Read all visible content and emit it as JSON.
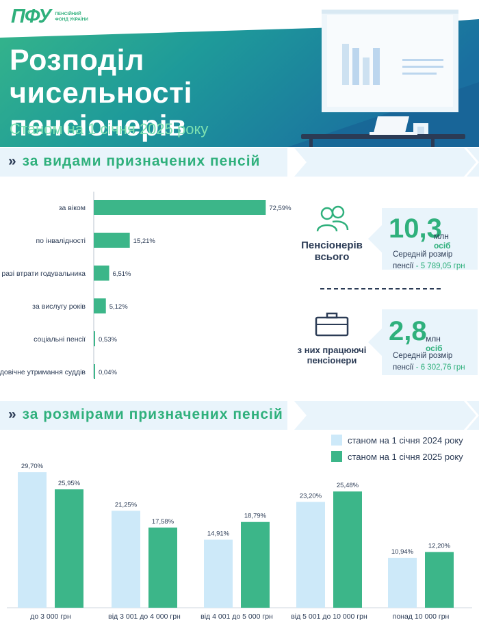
{
  "colors": {
    "accent_green": "#2fb07c",
    "dark_blue": "#2b3b55",
    "light_blue_bar": "#cde9f9",
    "band_bg": "#e9f4fb",
    "hero_teal": "#1b8f9e"
  },
  "header": {
    "logo_mark": "ПФУ",
    "logo_text": "ПЕНСІЙНИЙ ФОНД УКРАЇНИ",
    "title": "Розподіл чисельності пенсіонерів",
    "subtitle": "Станом на 1 січня 2025 року",
    "illustration_icon": "presentation-board-desk-icon"
  },
  "sections": {
    "by_type": {
      "chevron": "»",
      "title": "за видами призначених пенсій"
    },
    "by_size": {
      "chevron": "»",
      "title": "за розмірами призначених пенсій"
    }
  },
  "summary": {
    "total": {
      "icon": "people-icon",
      "label": "Пенсіонерів всього",
      "number": "10,3",
      "unit": "млн",
      "unit_word": "осіб",
      "avg_label": "Середній розмір пенсії",
      "avg_value": "- 5 789,05 грн"
    },
    "working": {
      "icon": "briefcase-icon",
      "label": "з них працюючі пенсіонери",
      "number": "2,8",
      "unit": "млн",
      "unit_word": "осіб",
      "avg_label": "Середній розмір пенсії",
      "avg_value": "- 6 302,76 грн"
    }
  },
  "legend": {
    "items": [
      {
        "label": "станом на 1 січня 2024 року",
        "color": "#cde9f9"
      },
      {
        "label": "станом на 1 січня 2025 року",
        "color": "#3cb689"
      }
    ]
  },
  "chart_data": [
    {
      "type": "bar",
      "orientation": "horizontal",
      "categories": [
        "за віком",
        "по інвалідності",
        "у разі втрати годувальника",
        "за вислугу років",
        "соціальні пенсії",
        "довічне утримання суддів"
      ],
      "values": [
        72.59,
        15.21,
        6.51,
        5.12,
        0.53,
        0.04
      ],
      "value_labels": [
        "72,59%",
        "15,21%",
        "6,51%",
        "5,12%",
        "0,53%",
        "0,04%"
      ],
      "unit": "%",
      "xlim": [
        0,
        80
      ],
      "color": "#3cb689",
      "grid": false
    },
    {
      "type": "bar",
      "orientation": "vertical",
      "categories": [
        "до 3 000 грн",
        "від 3 001 до 4 000 грн",
        "від 4 001 до 5 000 грн",
        "від 5 001 до 10 000 грн",
        "понад 10 000 грн"
      ],
      "series": [
        {
          "name": "станом на 1 січня 2024 року",
          "color": "#cde9f9",
          "values": [
            29.7,
            21.25,
            14.91,
            23.2,
            10.94
          ],
          "value_labels": [
            "29,70%",
            "21,25%",
            "14,91%",
            "23,20%",
            "10,94%"
          ]
        },
        {
          "name": "станом на 1 січня 2025 року",
          "color": "#3cb689",
          "values": [
            25.95,
            17.58,
            18.79,
            25.48,
            12.2
          ],
          "value_labels": [
            "25,95%",
            "17,58%",
            "18,79%",
            "25,48%",
            "12,20%"
          ]
        }
      ],
      "unit": "%",
      "ylim": [
        0,
        30
      ],
      "grid": false,
      "legend_position": "top-right"
    }
  ]
}
